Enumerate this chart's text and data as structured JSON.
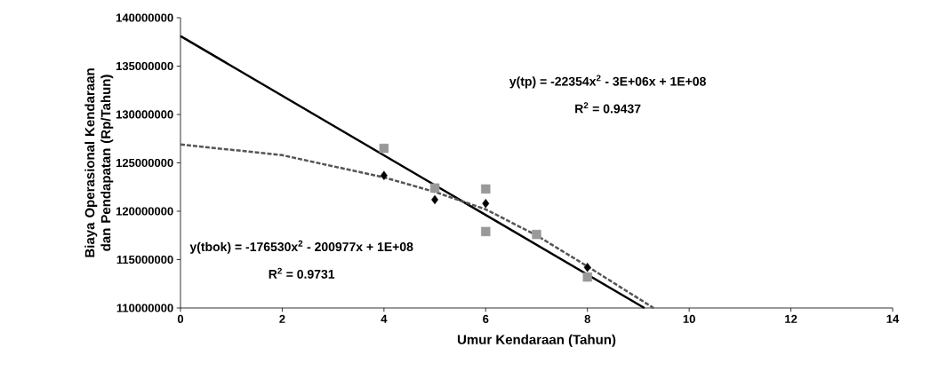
{
  "chart_data": {
    "type": "scatter",
    "xlabel": "Umur Kendaraan (Tahun)",
    "ylabel": "Biaya Operasional Kendaraan dan Pendapatan (Rp/Tahun)",
    "xlim": [
      0,
      14
    ],
    "xticks": [
      0,
      2,
      4,
      6,
      8,
      10,
      12,
      14
    ],
    "ylim": [
      110000000,
      140000000
    ],
    "yticks": [
      110000000,
      115000000,
      120000000,
      125000000,
      130000000,
      135000000,
      140000000
    ],
    "series": [
      {
        "marker": "square",
        "color": "#999999",
        "x": [
          4,
          5,
          6,
          6,
          7,
          8
        ],
        "values": [
          126500000,
          122400000,
          122300000,
          117900000,
          117600000,
          113200000
        ]
      },
      {
        "marker": "diamond",
        "color": "#000000",
        "x": [
          4,
          5,
          6,
          8
        ],
        "values": [
          123700000,
          121200000,
          120800000,
          114200000
        ]
      },
      {
        "type": "line",
        "line_style": "solid",
        "color": "#000000",
        "x": [
          0,
          9.12
        ],
        "values": [
          138100000,
          110000000
        ]
      },
      {
        "type": "line",
        "line_style": "dashed",
        "color": "#555555",
        "x": [
          0,
          2,
          4,
          5,
          6,
          7,
          8,
          9.3
        ],
        "values": [
          126900000,
          125800000,
          123500000,
          122000000,
          120200000,
          117500000,
          114300000,
          110000000
        ]
      }
    ],
    "annotations": [
      "y(tp) = -22354x$^{2}$ - 3E+06x + 1E+08",
      "R$^{2}$ = 0.9437",
      "y(tbok) = -176530x$^{2}$ - 200977x + 1E+08",
      "R$^{2}$ = 0.9731"
    ]
  }
}
